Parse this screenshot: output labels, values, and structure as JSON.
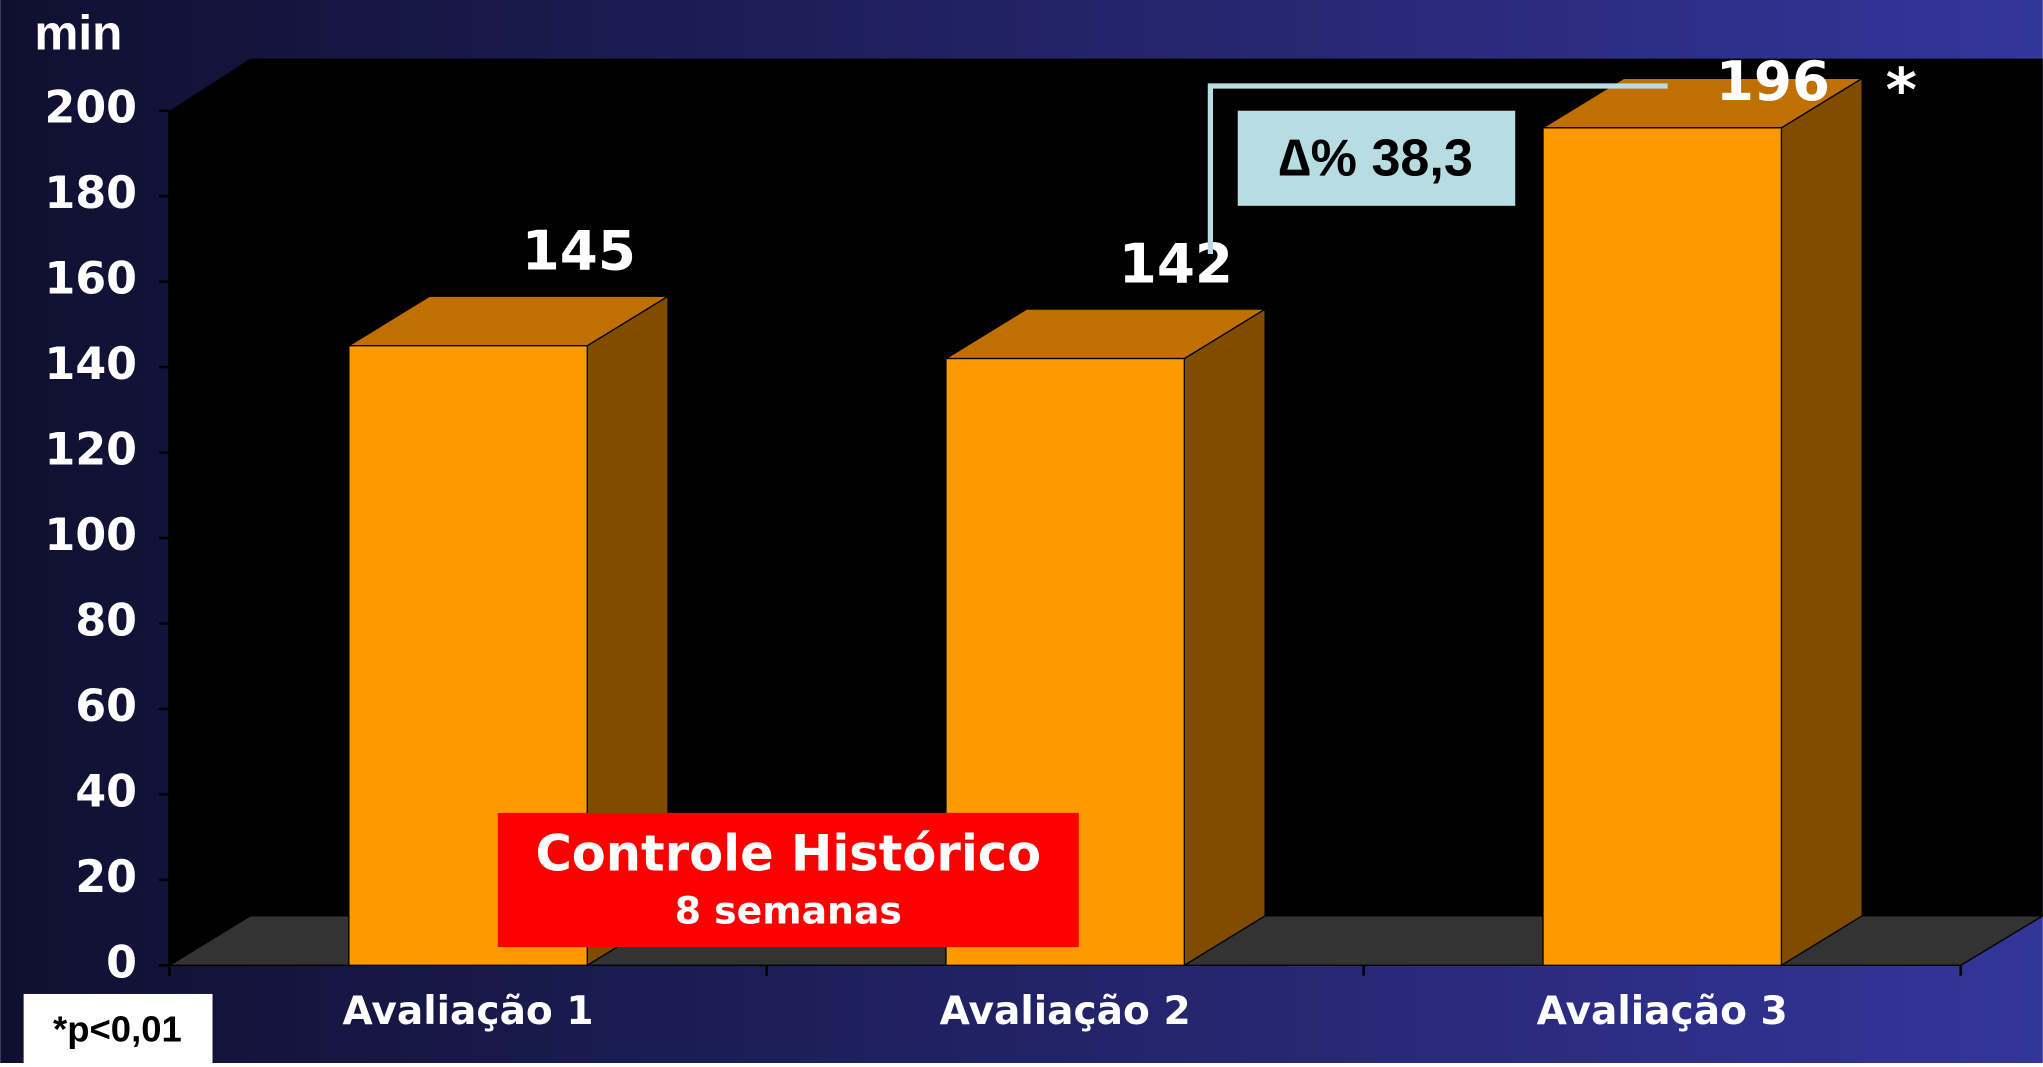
{
  "chart_data": {
    "type": "bar",
    "y_label": "min",
    "categories": [
      "Avaliação 1",
      "Avaliação 2",
      "Avaliação 3"
    ],
    "values": [
      145,
      142,
      196
    ],
    "color": "#ff9900",
    "ylim": [
      0,
      200
    ],
    "yticks": [
      0,
      20,
      40,
      60,
      80,
      100,
      120,
      140,
      160,
      180,
      200
    ],
    "annotations": {
      "delta": "∆% 38,3",
      "significance": "*",
      "group": "Controle Histórico",
      "duration": "8 semanas",
      "footnote": "*p<0,01"
    }
  }
}
